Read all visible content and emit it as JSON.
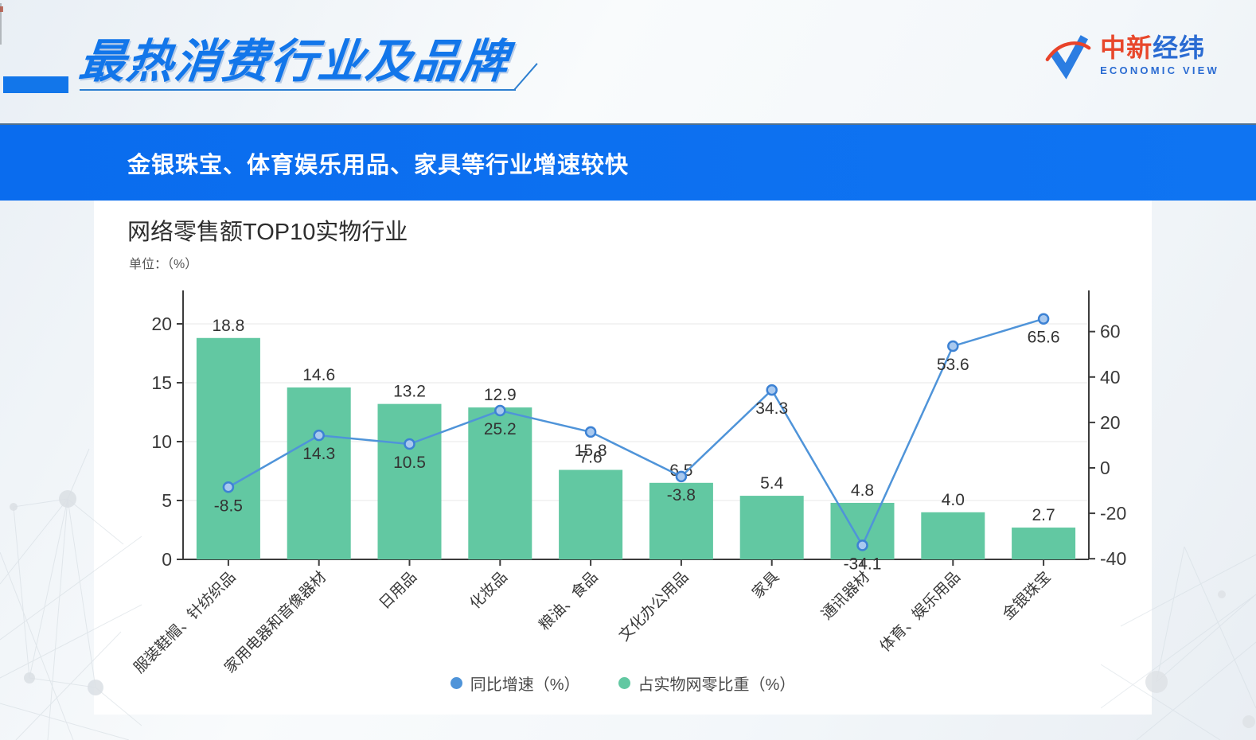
{
  "header": {
    "title": "最热消费行业及品牌"
  },
  "logo": {
    "name_red": "中新",
    "name_blue": "经纬",
    "subtitle": "ECONOMIC VIEW"
  },
  "banner": {
    "text": "金银珠宝、体育娱乐用品、家具等行业增速较快"
  },
  "chart_data": {
    "type": "combo-bar-line",
    "title": "网络零售额TOP10实物行业",
    "unit_label": "单位：（%）",
    "categories": [
      "服装鞋帽、针纺织品",
      "家用电器和音像器材",
      "日用品",
      "化妆品",
      "粮油、食品",
      "文化办公用品",
      "家具",
      "通讯器材",
      "体育、娱乐用品",
      "金银珠宝"
    ],
    "series": [
      {
        "name": "同比增速（%）",
        "type": "line",
        "axis": "right",
        "color": "#4f94d9",
        "values": [
          -8.5,
          14.3,
          10.5,
          25.2,
          15.8,
          -3.8,
          34.3,
          -34.1,
          53.6,
          65.6
        ]
      },
      {
        "name": "占实物网零比重（%）",
        "type": "bar",
        "axis": "left",
        "color": "#62c8a2",
        "values": [
          18.8,
          14.6,
          13.2,
          12.9,
          7.6,
          6.5,
          5.4,
          4.8,
          4.0,
          2.7
        ]
      }
    ],
    "left_axis": {
      "ticks": [
        0,
        5,
        10,
        15,
        20
      ],
      "range": [
        0,
        22.4
      ]
    },
    "right_axis": {
      "ticks": [
        -40,
        -20,
        0,
        20,
        40,
        60
      ],
      "range": [
        -40,
        78
      ]
    },
    "grid": true,
    "legend_position": "bottom"
  },
  "colors": {
    "accent": "#1276ea",
    "banner": "#0d6ff0",
    "bar": "#62c8a2",
    "line": "#4f94d9",
    "axis": "#3c3c3c",
    "label": "#333333"
  }
}
